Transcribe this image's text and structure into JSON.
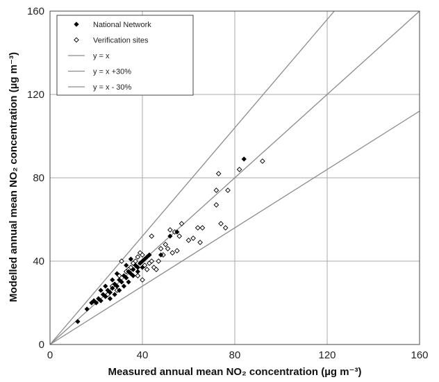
{
  "chart_data": {
    "type": "scatter",
    "xlabel": "Measured annual mean NO₂ concentration (µg m⁻³)",
    "ylabel": "Modelled annual mean NO₂ concentration (µg m⁻³)",
    "xlim": [
      0,
      160
    ],
    "ylim": [
      0,
      160
    ],
    "x_ticks": [
      0,
      40,
      80,
      120,
      160
    ],
    "y_ticks": [
      0,
      40,
      80,
      120,
      160
    ],
    "x_tick_labels": [
      "0",
      "40",
      "80",
      "120",
      "160"
    ],
    "y_tick_labels": [
      "0",
      "40",
      "80",
      "120",
      "160"
    ],
    "grid": true,
    "legend_position": "top-left",
    "series": [
      {
        "name": "National Network",
        "marker": "filled-diamond",
        "color": "#000000",
        "points": [
          [
            12,
            11
          ],
          [
            16,
            17
          ],
          [
            18,
            20
          ],
          [
            19,
            21
          ],
          [
            20,
            20
          ],
          [
            21,
            22
          ],
          [
            22,
            21
          ],
          [
            23,
            24
          ],
          [
            24,
            23
          ],
          [
            25,
            26
          ],
          [
            26,
            25
          ],
          [
            27,
            27
          ],
          [
            28,
            29
          ],
          [
            29,
            28
          ],
          [
            30,
            31
          ],
          [
            31,
            30
          ],
          [
            32,
            33
          ],
          [
            33,
            32
          ],
          [
            34,
            35
          ],
          [
            35,
            34
          ],
          [
            36,
            36
          ],
          [
            37,
            38
          ],
          [
            38,
            37
          ],
          [
            39,
            39
          ],
          [
            40,
            40
          ],
          [
            41,
            41
          ],
          [
            42,
            42
          ],
          [
            43,
            43
          ],
          [
            26,
            22
          ],
          [
            28,
            24
          ],
          [
            30,
            26
          ],
          [
            32,
            28
          ],
          [
            34,
            30
          ],
          [
            36,
            33
          ],
          [
            38,
            35
          ],
          [
            22,
            26
          ],
          [
            24,
            28
          ],
          [
            27,
            31
          ],
          [
            29,
            34
          ],
          [
            33,
            38
          ],
          [
            35,
            41
          ],
          [
            40,
            37
          ],
          [
            48,
            43
          ],
          [
            52,
            52
          ],
          [
            55,
            54
          ],
          [
            84,
            89
          ]
        ]
      },
      {
        "name": "Verification sites",
        "marker": "open-diamond",
        "color": "#000000",
        "points": [
          [
            31,
            40
          ],
          [
            35,
            37
          ],
          [
            37,
            40
          ],
          [
            38,
            42
          ],
          [
            39,
            44
          ],
          [
            40,
            43
          ],
          [
            40,
            31
          ],
          [
            41,
            38
          ],
          [
            42,
            36
          ],
          [
            43,
            39
          ],
          [
            44,
            40
          ],
          [
            44,
            52
          ],
          [
            45,
            37
          ],
          [
            46,
            36
          ],
          [
            47,
            40
          ],
          [
            48,
            46
          ],
          [
            49,
            43
          ],
          [
            50,
            48
          ],
          [
            51,
            46
          ],
          [
            52,
            55
          ],
          [
            53,
            44
          ],
          [
            54,
            54
          ],
          [
            55,
            45
          ],
          [
            56,
            52
          ],
          [
            57,
            58
          ],
          [
            60,
            50
          ],
          [
            62,
            51
          ],
          [
            64,
            56
          ],
          [
            65,
            49
          ],
          [
            66,
            56
          ],
          [
            72,
            67
          ],
          [
            72,
            74
          ],
          [
            73,
            82
          ],
          [
            74,
            58
          ],
          [
            76,
            56
          ],
          [
            77,
            74
          ],
          [
            82,
            84
          ],
          [
            92,
            88
          ],
          [
            27,
            28
          ],
          [
            30,
            33
          ],
          [
            33,
            35
          ],
          [
            36,
            39
          ],
          [
            25,
            24
          ],
          [
            29,
            26
          ],
          [
            34,
            36
          ],
          [
            38,
            33
          ]
        ]
      }
    ],
    "lines": [
      {
        "name": "y = x",
        "slope": 1.0,
        "color": "#8a8a8a"
      },
      {
        "name": "y = x +30%",
        "slope": 1.3,
        "color": "#8a8a8a"
      },
      {
        "name": "y = x - 30%",
        "slope": 0.7,
        "color": "#8a8a8a"
      }
    ]
  }
}
